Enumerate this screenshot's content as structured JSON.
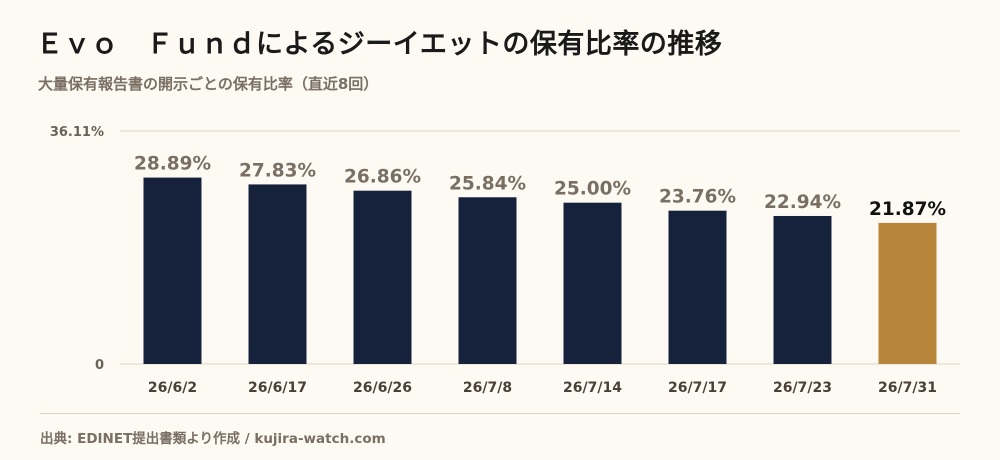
{
  "title": "Ｅｖｏ　Ｆｕｎｄによるジーイエットの保有比率の推移",
  "subtitle": "大量保有報告書の開示ごとの保有比率（直近8回）",
  "source": "出典: EDINET提出書類より作成 / kujira-watch.com",
  "colors": {
    "bar": "#16213b",
    "highlight": "#b8863b",
    "background": "#fcfaf3",
    "grid": "#ddd6c6"
  },
  "chart_data": {
    "type": "bar",
    "categories": [
      "26/6/2",
      "26/6/17",
      "26/6/26",
      "26/7/8",
      "26/7/14",
      "26/7/17",
      "26/7/23",
      "26/7/31"
    ],
    "values": [
      28.89,
      27.83,
      26.86,
      25.84,
      25.0,
      23.76,
      22.94,
      21.87
    ],
    "data_labels": [
      "28.89%",
      "27.83%",
      "26.86%",
      "25.84%",
      "25.00%",
      "23.76%",
      "22.94%",
      "21.87%"
    ],
    "highlight_index": 7,
    "ylim": [
      0,
      36.11
    ],
    "yticks": [
      "0",
      "36.11%"
    ],
    "grid": true
  }
}
